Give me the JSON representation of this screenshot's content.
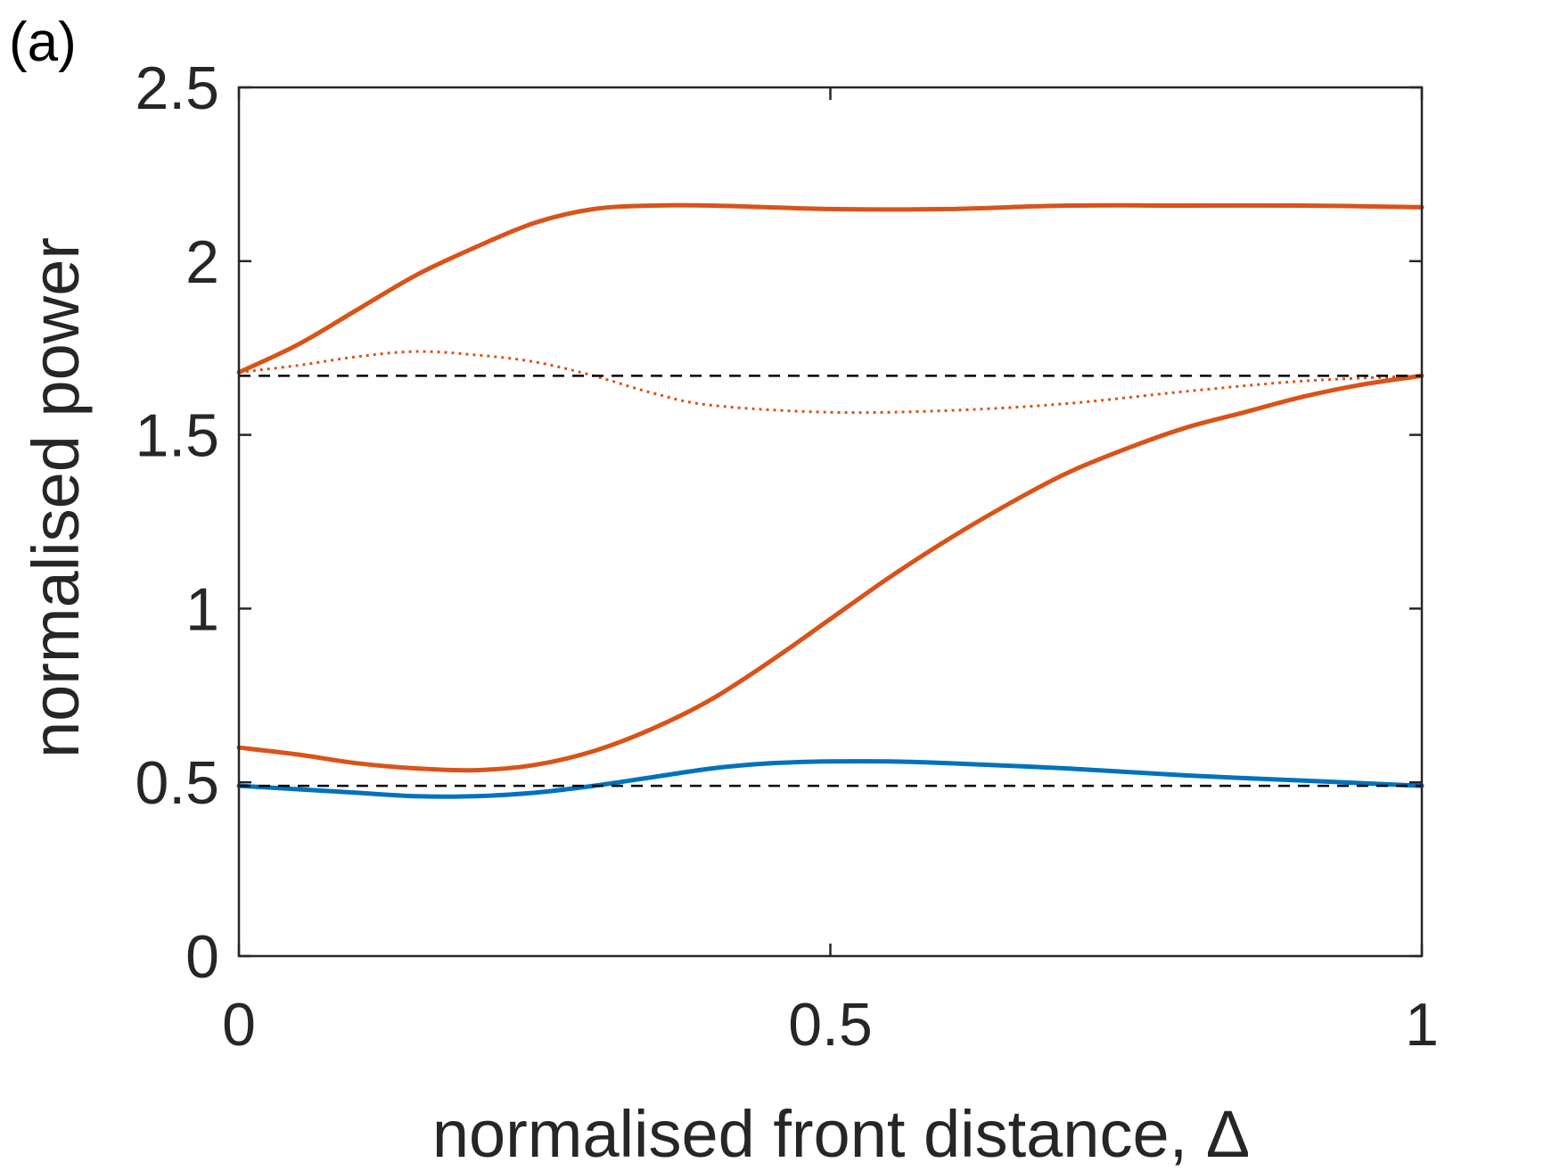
{
  "chart_data": {
    "type": "line",
    "panel_label": "(a)",
    "xlabel": "normalised front distance, Δ",
    "ylabel": "normalised power",
    "xlim": [
      0,
      1
    ],
    "ylim": [
      0,
      2.5
    ],
    "xticks": [
      0,
      0.5,
      1
    ],
    "xtick_labels": [
      "0",
      "0.5",
      "1"
    ],
    "yticks": [
      0,
      0.5,
      1,
      1.5,
      2,
      2.5
    ],
    "ytick_labels": [
      "0",
      "0.5",
      "1",
      "1.5",
      "2",
      "2.5"
    ],
    "grid": false,
    "legend": false,
    "colors": {
      "orange": "#D95319",
      "blue": "#0072BD",
      "reference": "#000000",
      "axes": "#262626"
    },
    "series": [
      {
        "style": "solid",
        "color": "#D95319",
        "x": [
          0,
          0.05,
          0.1,
          0.15,
          0.2,
          0.25,
          0.3,
          0.35,
          0.4,
          0.5,
          0.6,
          0.7,
          0.8,
          0.9,
          1.0
        ],
        "y": [
          1.68,
          1.76,
          1.86,
          1.96,
          2.04,
          2.11,
          2.15,
          2.16,
          2.16,
          2.15,
          2.15,
          2.16,
          2.16,
          2.16,
          2.155
        ]
      },
      {
        "style": "dotted",
        "color": "#D95319",
        "x": [
          0,
          0.05,
          0.1,
          0.15,
          0.2,
          0.25,
          0.3,
          0.35,
          0.4,
          0.5,
          0.6,
          0.7,
          0.8,
          0.9,
          1.0
        ],
        "y": [
          1.68,
          1.7,
          1.725,
          1.74,
          1.73,
          1.71,
          1.67,
          1.62,
          1.585,
          1.565,
          1.57,
          1.59,
          1.625,
          1.655,
          1.67
        ]
      },
      {
        "style": "solid",
        "color": "#D95319",
        "x": [
          0,
          0.05,
          0.1,
          0.15,
          0.2,
          0.25,
          0.3,
          0.35,
          0.4,
          0.45,
          0.5,
          0.55,
          0.6,
          0.65,
          0.7,
          0.75,
          0.8,
          0.85,
          0.9,
          0.95,
          1.0
        ],
        "y": [
          0.6,
          0.58,
          0.555,
          0.54,
          0.535,
          0.55,
          0.59,
          0.655,
          0.74,
          0.85,
          0.97,
          1.09,
          1.2,
          1.3,
          1.39,
          1.46,
          1.52,
          1.565,
          1.61,
          1.645,
          1.67
        ]
      },
      {
        "style": "solid",
        "color": "#0072BD",
        "x": [
          0,
          0.05,
          0.1,
          0.15,
          0.2,
          0.25,
          0.3,
          0.35,
          0.4,
          0.45,
          0.5,
          0.55,
          0.6,
          0.7,
          0.8,
          0.9,
          1.0
        ],
        "y": [
          0.49,
          0.48,
          0.47,
          0.46,
          0.46,
          0.47,
          0.49,
          0.515,
          0.54,
          0.555,
          0.56,
          0.56,
          0.555,
          0.54,
          0.52,
          0.505,
          0.49
        ]
      },
      {
        "style": "dashed",
        "color": "#000000",
        "x": [
          0,
          1
        ],
        "y": [
          1.67,
          1.67
        ]
      },
      {
        "style": "dashed",
        "color": "#000000",
        "x": [
          0,
          1
        ],
        "y": [
          0.49,
          0.49
        ]
      }
    ]
  }
}
